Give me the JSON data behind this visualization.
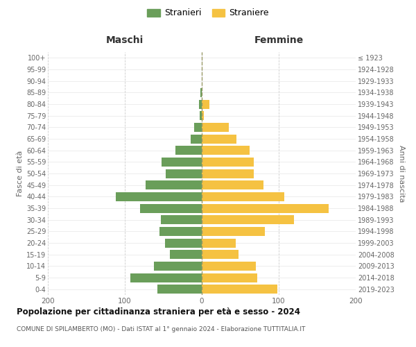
{
  "age_groups": [
    "0-4",
    "5-9",
    "10-14",
    "15-19",
    "20-24",
    "25-29",
    "30-34",
    "35-39",
    "40-44",
    "45-49",
    "50-54",
    "55-59",
    "60-64",
    "65-69",
    "70-74",
    "75-79",
    "80-84",
    "85-89",
    "90-94",
    "95-99",
    "100+"
  ],
  "birth_years": [
    "2019-2023",
    "2014-2018",
    "2009-2013",
    "2004-2008",
    "1999-2003",
    "1994-1998",
    "1989-1993",
    "1984-1988",
    "1979-1983",
    "1974-1978",
    "1969-1973",
    "1964-1968",
    "1959-1963",
    "1954-1958",
    "1949-1953",
    "1944-1948",
    "1939-1943",
    "1934-1938",
    "1929-1933",
    "1924-1928",
    "≤ 1923"
  ],
  "maschi": [
    58,
    93,
    62,
    41,
    48,
    55,
    53,
    80,
    112,
    73,
    47,
    52,
    34,
    14,
    10,
    3,
    4,
    2,
    0,
    0,
    0
  ],
  "femmine": [
    98,
    72,
    70,
    48,
    44,
    82,
    120,
    165,
    107,
    80,
    68,
    68,
    62,
    45,
    35,
    3,
    10,
    0,
    0,
    0,
    0
  ],
  "maschi_color": "#6a9e5a",
  "femmine_color": "#f5c242",
  "background_color": "#ffffff",
  "grid_color": "#cccccc",
  "title": "Popolazione per cittadinanza straniera per età e sesso - 2024",
  "subtitle": "COMUNE DI SPILAMBERTO (MO) - Dati ISTAT al 1° gennaio 2024 - Elaborazione TUTTITALIA.IT",
  "xlabel_left": "Maschi",
  "xlabel_right": "Femmine",
  "ylabel_left": "Fasce di età",
  "ylabel_right": "Anni di nascita",
  "legend_maschi": "Stranieri",
  "legend_femmine": "Straniere",
  "xlim": 200
}
